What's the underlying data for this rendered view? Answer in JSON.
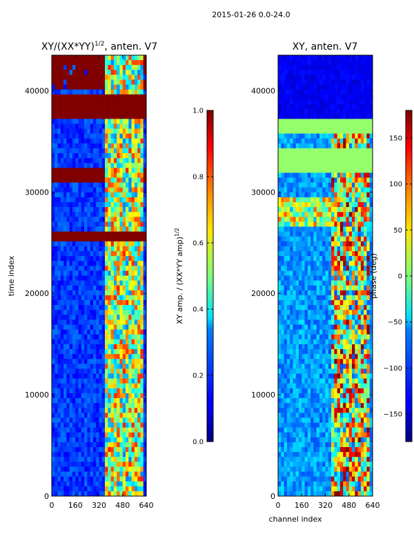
{
  "figure_title": "2015-01-26 0.0-24.0",
  "chart_data": [
    {
      "type": "heatmap",
      "title": "XY/(XX*YY)^1/2, anten. V7",
      "title_main": "XY/(XX*YY)",
      "title_exp": "1/2",
      "title_suffix": ", anten. V7",
      "xlabel": "",
      "ylabel": "time index",
      "x_range": [
        0,
        640
      ],
      "y_range": [
        0,
        43500
      ],
      "x_ticks": [
        0,
        160,
        320,
        480,
        640
      ],
      "y_ticks": [
        0,
        10000,
        20000,
        30000,
        40000
      ],
      "colorbar": {
        "label": "XY amp. / (XX*YY amp)^1/2",
        "label_main": "XY amp. / (XX*YY amp)",
        "label_exp": "1/2",
        "range": [
          0.0,
          1.0
        ],
        "ticks": [
          0.0,
          0.2,
          0.4,
          0.6,
          0.8,
          1.0
        ],
        "tick_labels": [
          "0.0",
          "0.2",
          "0.4",
          "0.6",
          "0.8",
          "1.0"
        ]
      }
    },
    {
      "type": "heatmap",
      "title": "XY, anten. V7",
      "xlabel": "channel index",
      "ylabel": "",
      "x_range": [
        0,
        640
      ],
      "y_range": [
        0,
        43500
      ],
      "x_ticks": [
        0,
        160,
        320,
        480,
        640
      ],
      "y_ticks": [
        0,
        10000,
        20000,
        30000,
        40000
      ],
      "colorbar": {
        "label": "phase (deg)",
        "range": [
          -180,
          180
        ],
        "ticks": [
          -150,
          -100,
          -50,
          0,
          50,
          100,
          150
        ],
        "tick_labels": [
          "−150",
          "−100",
          "−50",
          "0",
          "50",
          "100",
          "150"
        ]
      }
    }
  ]
}
